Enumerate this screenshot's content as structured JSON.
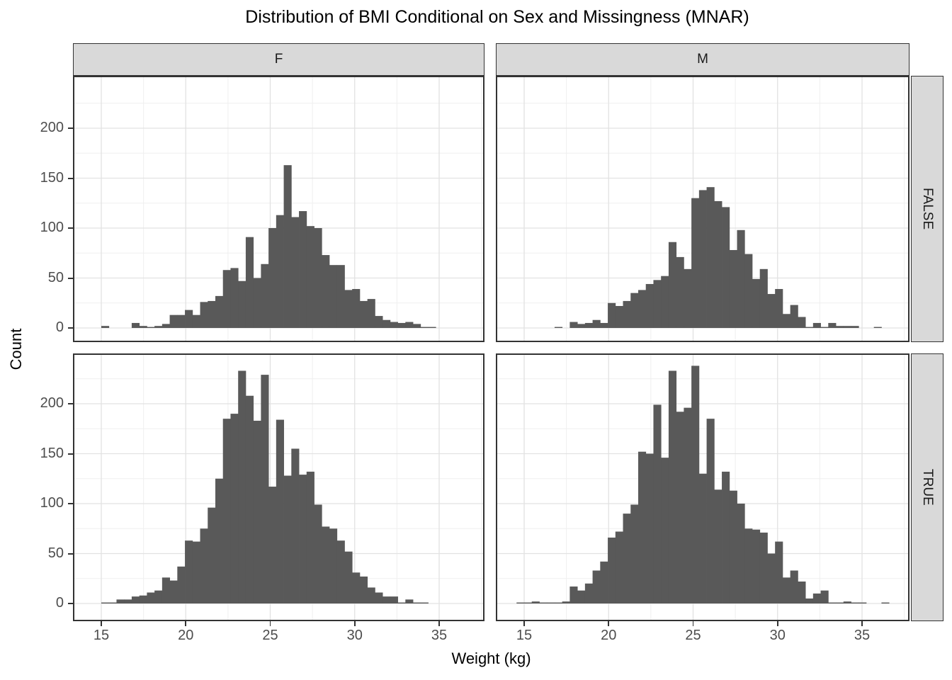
{
  "title": "Distribution of BMI Conditional on Sex and Missingness (MNAR)",
  "axes": {
    "x_title": "Weight (kg)",
    "y_title": "Count"
  },
  "facets": {
    "cols": [
      "F",
      "M"
    ],
    "rows": [
      "FALSE",
      "TRUE"
    ]
  },
  "colors": {
    "bar": "#595959",
    "panel_border": "#333333",
    "grid_major": "#e2e2e2",
    "grid_minor": "#efefef",
    "strip_bg": "#d9d9d9",
    "axis_text": "#4d4d4d",
    "text": "#000000",
    "background": "#ffffff"
  },
  "chart_data": {
    "type": "bar",
    "subtype": "faceted-histogram",
    "title": "Distribution of BMI Conditional on Sex and Missingness (MNAR)",
    "xlabel": "Weight (kg)",
    "ylabel": "Count",
    "facet_col_labels": [
      "F",
      "M"
    ],
    "facet_row_labels": [
      "FALSE",
      "TRUE"
    ],
    "x_ticks": [
      15,
      20,
      25,
      30,
      35
    ],
    "x_minor_ticks": [
      17.5,
      22.5,
      27.5,
      32.5,
      37.5
    ],
    "y_ticks": [
      0,
      50,
      100,
      150,
      200
    ],
    "y_minor_ticks": [
      25,
      75,
      125,
      175,
      225
    ],
    "x_range_shown": [
      13.3,
      37.8
    ],
    "y_range_shown": [
      -12,
      252
    ],
    "binwidth": 0.45,
    "grid": true,
    "legend": false,
    "panels": [
      {
        "col": "F",
        "row": "FALSE",
        "bin_start": 15.0,
        "counts": [
          2,
          0,
          0,
          0,
          5,
          2,
          1,
          2,
          4,
          13,
          13,
          18,
          13,
          26,
          27,
          32,
          58,
          60,
          47,
          91,
          50,
          64,
          100,
          113,
          163,
          111,
          117,
          102,
          100,
          73,
          63,
          63,
          38,
          39,
          27,
          29,
          12,
          8,
          6,
          5,
          6,
          4,
          1,
          1
        ]
      },
      {
        "col": "M",
        "row": "FALSE",
        "bin_start": 16.8,
        "counts": [
          1,
          0,
          6,
          4,
          5,
          8,
          5,
          25,
          22,
          27,
          35,
          38,
          44,
          48,
          52,
          86,
          71,
          59,
          130,
          138,
          141,
          127,
          121,
          78,
          98,
          74,
          49,
          59,
          34,
          39,
          14,
          23,
          11,
          1,
          5,
          1,
          5,
          2,
          2,
          2,
          0,
          0,
          1
        ]
      },
      {
        "col": "F",
        "row": "TRUE",
        "bin_start": 15.0,
        "counts": [
          1,
          1,
          4,
          4,
          7,
          8,
          11,
          13,
          26,
          23,
          37,
          63,
          62,
          75,
          96,
          125,
          185,
          190,
          233,
          208,
          183,
          229,
          117,
          184,
          128,
          155,
          129,
          132,
          99,
          77,
          75,
          63,
          52,
          31,
          27,
          16,
          11,
          7,
          7,
          1,
          4,
          1,
          1
        ]
      },
      {
        "col": "M",
        "row": "TRUE",
        "bin_start": 14.55,
        "counts": [
          1,
          1,
          2,
          1,
          1,
          1,
          2,
          17,
          13,
          20,
          33,
          42,
          66,
          72,
          90,
          99,
          152,
          150,
          199,
          146,
          233,
          192,
          196,
          238,
          130,
          185,
          114,
          132,
          113,
          100,
          75,
          74,
          71,
          50,
          62,
          26,
          33,
          22,
          5,
          10,
          13,
          1,
          1,
          2,
          1,
          1,
          0,
          0,
          1
        ]
      }
    ]
  }
}
